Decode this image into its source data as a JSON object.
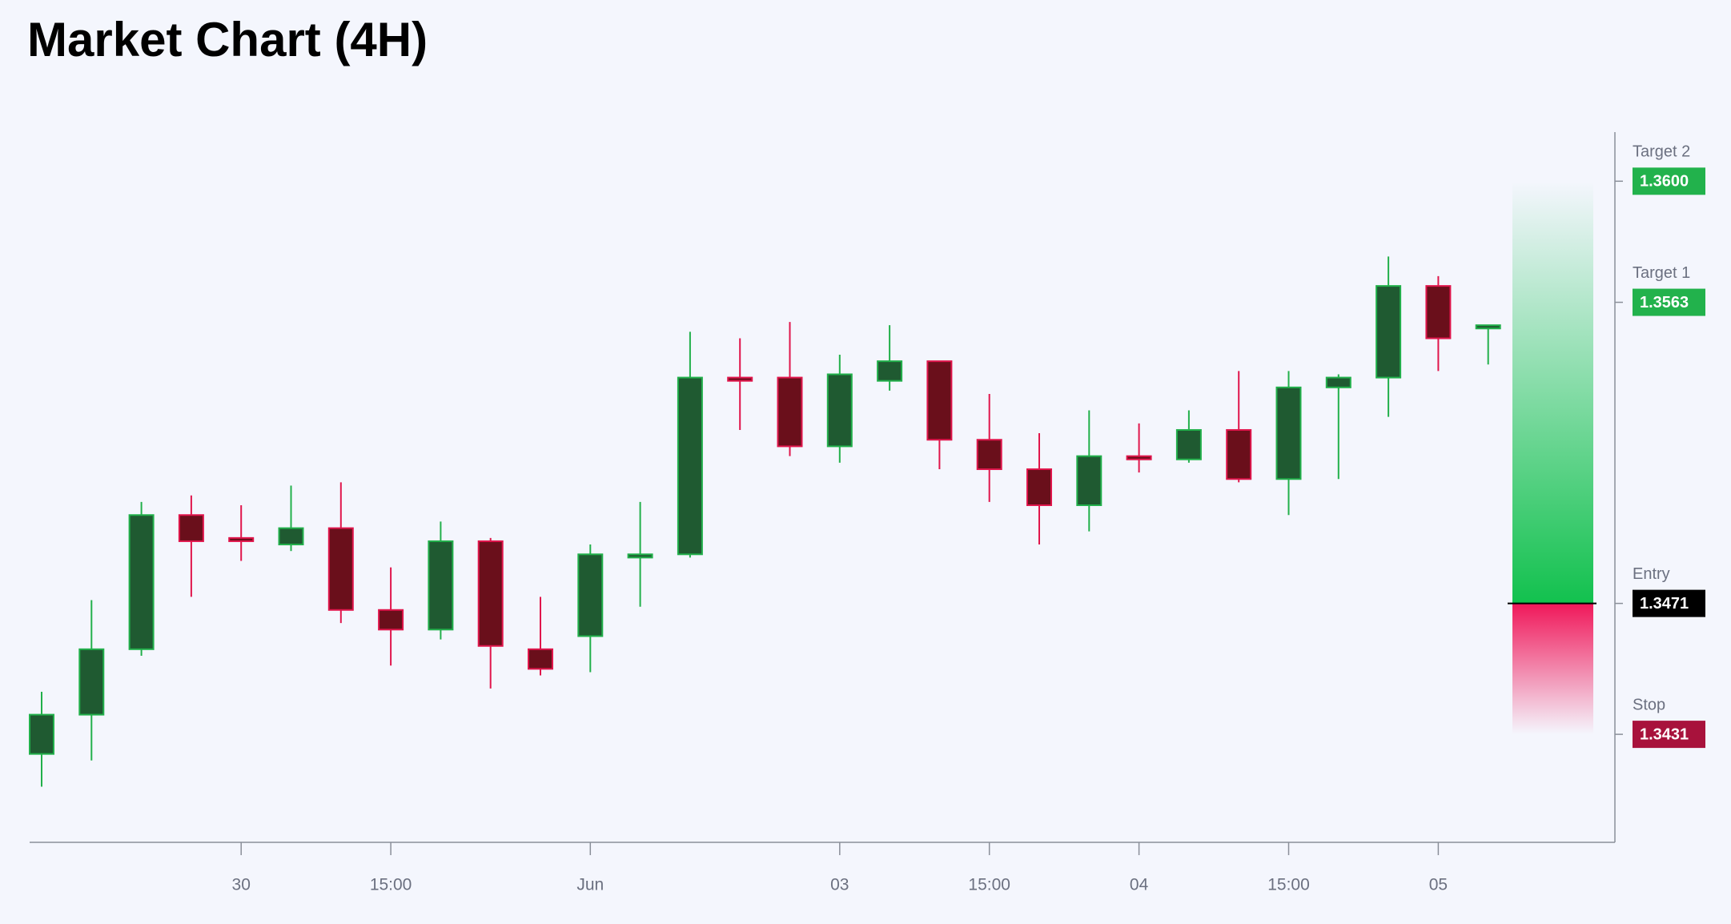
{
  "chart_data": {
    "type": "candlestick",
    "title": "Market Chart (4H)",
    "x": [
      null,
      null,
      null,
      null,
      "30",
      null,
      null,
      "15:00",
      null,
      null,
      null,
      "Jun",
      null,
      null,
      null,
      null,
      "03",
      null,
      null,
      "15:00",
      null,
      null,
      "04",
      null,
      null,
      "15:00",
      null,
      null,
      "05",
      null
    ],
    "open": [
      1.3425,
      1.3437,
      1.3457,
      1.3498,
      1.3491,
      1.3489,
      1.3494,
      1.3469,
      1.3463,
      1.349,
      1.3457,
      1.3461,
      1.3485,
      1.3486,
      1.354,
      1.354,
      1.3519,
      1.3539,
      1.3545,
      1.3521,
      1.3512,
      1.3501,
      1.3516,
      1.3515,
      1.3524,
      1.3509,
      1.3537,
      1.354,
      1.3568,
      1.3555
    ],
    "high": [
      1.3444,
      1.3472,
      1.3502,
      1.3504,
      1.3501,
      1.3507,
      1.3508,
      1.3482,
      1.3496,
      1.3491,
      1.3473,
      1.3489,
      1.3502,
      1.3554,
      1.3552,
      1.3557,
      1.3547,
      1.3556,
      1.3545,
      1.3535,
      1.3523,
      1.353,
      1.3526,
      1.353,
      1.3542,
      1.3542,
      1.3541,
      1.3577,
      1.3571,
      1.3556
    ],
    "low": [
      1.3415,
      1.3423,
      1.3455,
      1.3473,
      1.3484,
      1.3487,
      1.3465,
      1.3452,
      1.346,
      1.3445,
      1.3449,
      1.345,
      1.347,
      1.3485,
      1.3524,
      1.3516,
      1.3514,
      1.3536,
      1.3512,
      1.3502,
      1.3489,
      1.3493,
      1.3511,
      1.3514,
      1.3508,
      1.3498,
      1.3509,
      1.3528,
      1.3542,
      1.3544
    ],
    "close": [
      1.3437,
      1.3457,
      1.3498,
      1.349,
      1.349,
      1.3494,
      1.3469,
      1.3463,
      1.349,
      1.3458,
      1.3451,
      1.3486,
      1.3486,
      1.354,
      1.3539,
      1.3519,
      1.3541,
      1.3545,
      1.3521,
      1.3512,
      1.3501,
      1.3516,
      1.3515,
      1.3524,
      1.3509,
      1.3537,
      1.354,
      1.3568,
      1.3552,
      1.3556
    ],
    "up_color": "#22b04b",
    "down_color": "#e0164c",
    "ylim": [
      1.3398,
      1.3615
    ],
    "levels": [
      {
        "name": "Target 2",
        "value": 1.36,
        "label": "1.3600",
        "color": "#22b24c"
      },
      {
        "name": "Target 1",
        "value": 1.3563,
        "label": "1.3563",
        "color": "#22b24c"
      },
      {
        "name": "Entry",
        "value": 1.3471,
        "label": "1.3471",
        "color": "#000000"
      },
      {
        "name": "Stop",
        "value": 1.3431,
        "label": "1.3431",
        "color": "#a8123c"
      }
    ]
  }
}
